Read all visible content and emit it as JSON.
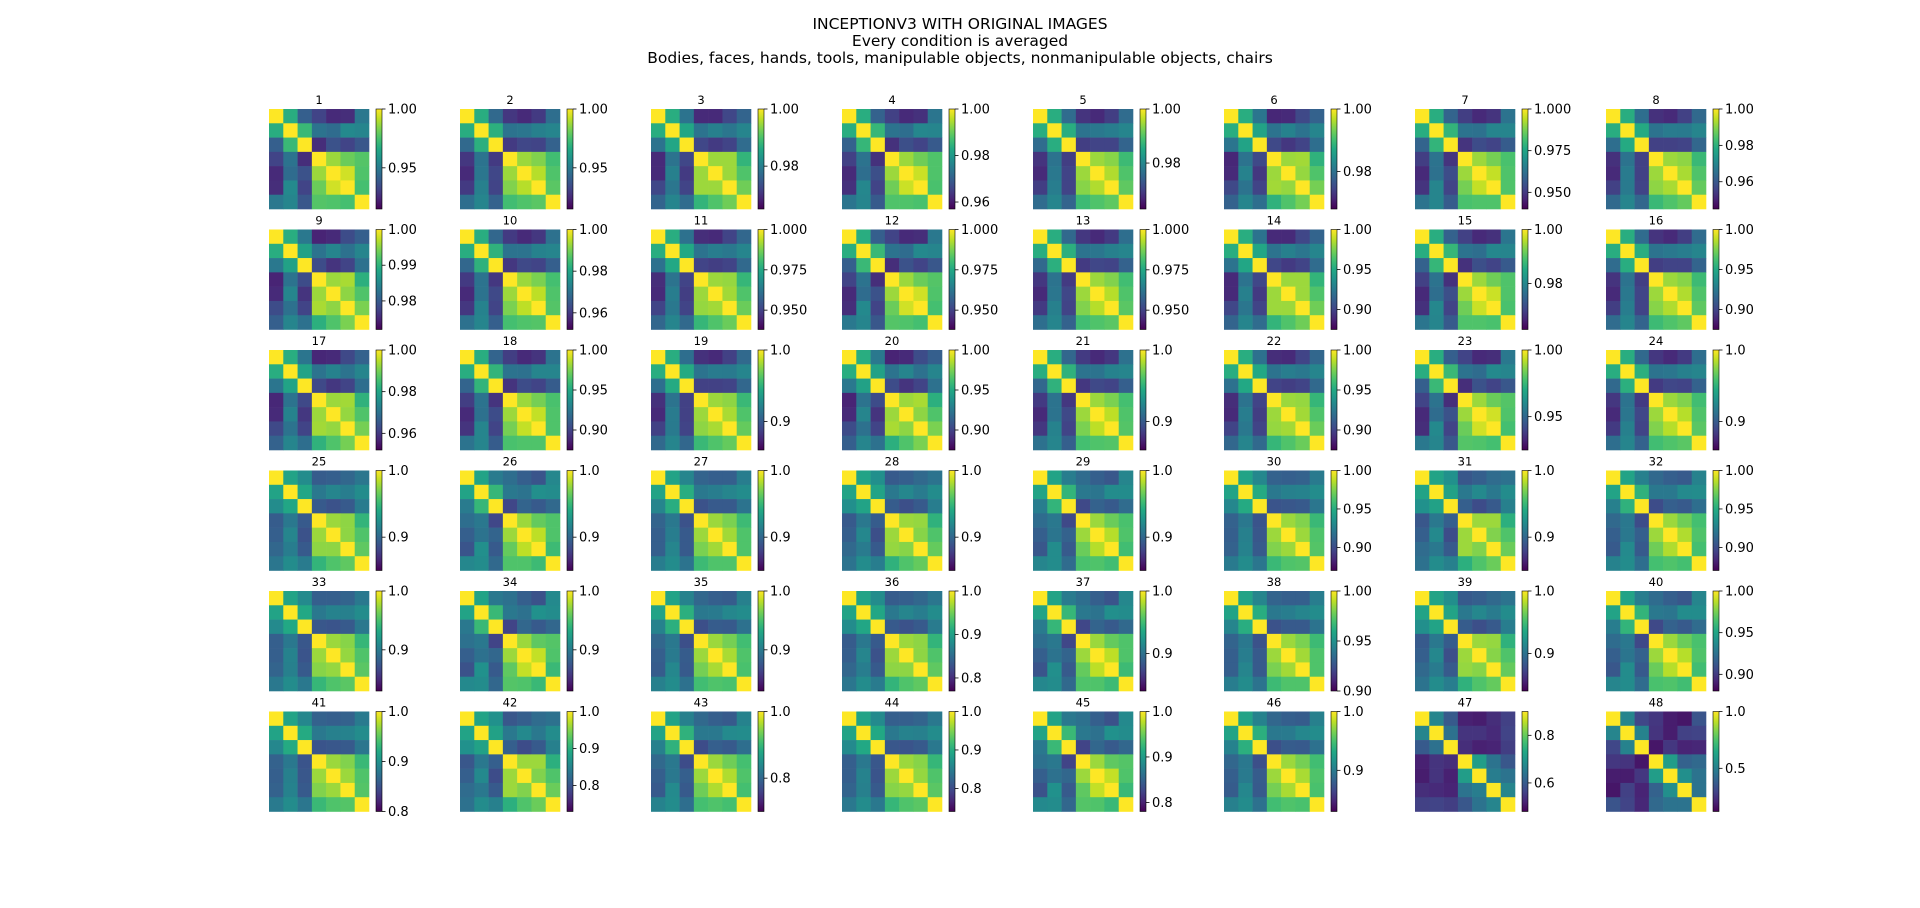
{
  "chart_data": {
    "type": "heatmap",
    "title": "INCEPTIONV3 WITH ORIGINAL IMAGES",
    "subtitle": "Every condition is averaged",
    "subtitle2": "Bodies, faces, hands, tools, manipulable objects, nonmanipulable objects, chairs",
    "colormap": "viridis",
    "conditions": [
      "Bodies",
      "faces",
      "hands",
      "tools",
      "manipulable objects",
      "nonmanipulable objects",
      "chairs"
    ],
    "matrix_size": 7,
    "panels": [
      {
        "label": "1",
        "colorbar": {
          "min": 0.915,
          "max": 1.0,
          "ticks": [
            "1.00",
            "0.95"
          ],
          "tick_values": [
            1.0,
            0.95
          ]
        }
      },
      {
        "label": "2",
        "colorbar": {
          "min": 0.915,
          "max": 1.0,
          "ticks": [
            "1.00",
            "0.95"
          ],
          "tick_values": [
            1.0,
            0.95
          ]
        }
      },
      {
        "label": "3",
        "colorbar": {
          "min": 0.965,
          "max": 1.0,
          "ticks": [
            "1.00",
            "0.98"
          ],
          "tick_values": [
            1.0,
            0.98
          ]
        }
      },
      {
        "label": "4",
        "colorbar": {
          "min": 0.957,
          "max": 1.0,
          "ticks": [
            "1.00",
            "0.98",
            "0.96"
          ],
          "tick_values": [
            1.0,
            0.98,
            0.96
          ]
        }
      },
      {
        "label": "5",
        "colorbar": {
          "min": 0.963,
          "max": 1.0,
          "ticks": [
            "1.00",
            "0.98"
          ],
          "tick_values": [
            1.0,
            0.98
          ]
        }
      },
      {
        "label": "6",
        "colorbar": {
          "min": 0.968,
          "max": 1.0,
          "ticks": [
            "1.00",
            "0.98"
          ],
          "tick_values": [
            1.0,
            0.98
          ]
        }
      },
      {
        "label": "7",
        "colorbar": {
          "min": 0.94,
          "max": 1.0,
          "ticks": [
            "1.000",
            "0.975",
            "0.950"
          ],
          "tick_values": [
            1.0,
            0.975,
            0.95
          ]
        }
      },
      {
        "label": "8",
        "colorbar": {
          "min": 0.945,
          "max": 1.0,
          "ticks": [
            "1.00",
            "0.98",
            "0.96"
          ],
          "tick_values": [
            1.0,
            0.98,
            0.96
          ]
        }
      },
      {
        "label": "9",
        "colorbar": {
          "min": 0.972,
          "max": 1.0,
          "ticks": [
            "1.00",
            "0.99",
            "0.98"
          ],
          "tick_values": [
            1.0,
            0.99,
            0.98
          ]
        }
      },
      {
        "label": "10",
        "colorbar": {
          "min": 0.952,
          "max": 1.0,
          "ticks": [
            "1.00",
            "0.98",
            "0.96"
          ],
          "tick_values": [
            1.0,
            0.98,
            0.96
          ]
        }
      },
      {
        "label": "11",
        "colorbar": {
          "min": 0.938,
          "max": 1.0,
          "ticks": [
            "1.000",
            "0.975",
            "0.950"
          ],
          "tick_values": [
            1.0,
            0.975,
            0.95
          ]
        }
      },
      {
        "label": "12",
        "colorbar": {
          "min": 0.938,
          "max": 1.0,
          "ticks": [
            "1.000",
            "0.975",
            "0.950"
          ],
          "tick_values": [
            1.0,
            0.975,
            0.95
          ]
        }
      },
      {
        "label": "13",
        "colorbar": {
          "min": 0.938,
          "max": 1.0,
          "ticks": [
            "1.000",
            "0.975",
            "0.950"
          ],
          "tick_values": [
            1.0,
            0.975,
            0.95
          ]
        }
      },
      {
        "label": "14",
        "colorbar": {
          "min": 0.875,
          "max": 1.0,
          "ticks": [
            "1.00",
            "0.95",
            "0.90"
          ],
          "tick_values": [
            1.0,
            0.95,
            0.9
          ]
        }
      },
      {
        "label": "15",
        "colorbar": {
          "min": 0.963,
          "max": 1.0,
          "ticks": [
            "1.00",
            "0.98"
          ],
          "tick_values": [
            1.0,
            0.98
          ]
        }
      },
      {
        "label": "16",
        "colorbar": {
          "min": 0.875,
          "max": 1.0,
          "ticks": [
            "1.00",
            "0.95",
            "0.90"
          ],
          "tick_values": [
            1.0,
            0.95,
            0.9
          ]
        }
      },
      {
        "label": "17",
        "colorbar": {
          "min": 0.952,
          "max": 1.0,
          "ticks": [
            "1.00",
            "0.98",
            "0.96"
          ],
          "tick_values": [
            1.0,
            0.98,
            0.96
          ]
        }
      },
      {
        "label": "18",
        "colorbar": {
          "min": 0.875,
          "max": 1.0,
          "ticks": [
            "1.00",
            "0.95",
            "0.90"
          ],
          "tick_values": [
            1.0,
            0.95,
            0.9
          ]
        }
      },
      {
        "label": "19",
        "colorbar": {
          "min": 0.86,
          "max": 1.0,
          "ticks": [
            "1.0",
            "0.9"
          ],
          "tick_values": [
            1.0,
            0.9
          ]
        }
      },
      {
        "label": "20",
        "colorbar": {
          "min": 0.875,
          "max": 1.0,
          "ticks": [
            "1.00",
            "0.95",
            "0.90"
          ],
          "tick_values": [
            1.0,
            0.95,
            0.9
          ]
        }
      },
      {
        "label": "21",
        "colorbar": {
          "min": 0.86,
          "max": 1.0,
          "ticks": [
            "1.0",
            "0.9"
          ],
          "tick_values": [
            1.0,
            0.9
          ]
        }
      },
      {
        "label": "22",
        "colorbar": {
          "min": 0.875,
          "max": 1.0,
          "ticks": [
            "1.00",
            "0.95",
            "0.90"
          ],
          "tick_values": [
            1.0,
            0.95,
            0.9
          ]
        }
      },
      {
        "label": "23",
        "colorbar": {
          "min": 0.925,
          "max": 1.0,
          "ticks": [
            "1.00",
            "0.95"
          ],
          "tick_values": [
            1.0,
            0.95
          ]
        }
      },
      {
        "label": "24",
        "colorbar": {
          "min": 0.86,
          "max": 1.0,
          "ticks": [
            "1.0",
            "0.9"
          ],
          "tick_values": [
            1.0,
            0.9
          ]
        }
      },
      {
        "label": "25",
        "colorbar": {
          "min": 0.85,
          "max": 1.0,
          "ticks": [
            "1.0",
            "0.9"
          ],
          "tick_values": [
            1.0,
            0.9
          ]
        }
      },
      {
        "label": "26",
        "colorbar": {
          "min": 0.85,
          "max": 1.0,
          "ticks": [
            "1.0",
            "0.9"
          ],
          "tick_values": [
            1.0,
            0.9
          ]
        }
      },
      {
        "label": "27",
        "colorbar": {
          "min": 0.85,
          "max": 1.0,
          "ticks": [
            "1.0",
            "0.9"
          ],
          "tick_values": [
            1.0,
            0.9
          ]
        }
      },
      {
        "label": "28",
        "colorbar": {
          "min": 0.85,
          "max": 1.0,
          "ticks": [
            "1.0",
            "0.9"
          ],
          "tick_values": [
            1.0,
            0.9
          ]
        }
      },
      {
        "label": "29",
        "colorbar": {
          "min": 0.85,
          "max": 1.0,
          "ticks": [
            "1.0",
            "0.9"
          ],
          "tick_values": [
            1.0,
            0.9
          ]
        }
      },
      {
        "label": "30",
        "colorbar": {
          "min": 0.87,
          "max": 1.0,
          "ticks": [
            "1.00",
            "0.95",
            "0.90"
          ],
          "tick_values": [
            1.0,
            0.95,
            0.9
          ]
        }
      },
      {
        "label": "31",
        "colorbar": {
          "min": 0.85,
          "max": 1.0,
          "ticks": [
            "1.0",
            "0.9"
          ],
          "tick_values": [
            1.0,
            0.9
          ]
        }
      },
      {
        "label": "32",
        "colorbar": {
          "min": 0.87,
          "max": 1.0,
          "ticks": [
            "1.00",
            "0.95",
            "0.90"
          ],
          "tick_values": [
            1.0,
            0.95,
            0.9
          ]
        }
      },
      {
        "label": "33",
        "colorbar": {
          "min": 0.83,
          "max": 1.0,
          "ticks": [
            "1.0",
            "0.9"
          ],
          "tick_values": [
            1.0,
            0.9
          ]
        }
      },
      {
        "label": "34",
        "colorbar": {
          "min": 0.83,
          "max": 1.0,
          "ticks": [
            "1.0",
            "0.9"
          ],
          "tick_values": [
            1.0,
            0.9
          ]
        }
      },
      {
        "label": "35",
        "colorbar": {
          "min": 0.83,
          "max": 1.0,
          "ticks": [
            "1.0",
            "0.9"
          ],
          "tick_values": [
            1.0,
            0.9
          ]
        }
      },
      {
        "label": "36",
        "colorbar": {
          "min": 0.77,
          "max": 1.0,
          "ticks": [
            "1.0",
            "0.9",
            "0.8"
          ],
          "tick_values": [
            1.0,
            0.9,
            0.8
          ]
        }
      },
      {
        "label": "37",
        "colorbar": {
          "min": 0.84,
          "max": 1.0,
          "ticks": [
            "1.0",
            "0.9"
          ],
          "tick_values": [
            1.0,
            0.9
          ]
        }
      },
      {
        "label": "38",
        "colorbar": {
          "min": 0.9,
          "max": 1.0,
          "ticks": [
            "1.00",
            "0.95",
            "0.90"
          ],
          "tick_values": [
            1.0,
            0.95,
            0.9
          ]
        }
      },
      {
        "label": "39",
        "colorbar": {
          "min": 0.84,
          "max": 1.0,
          "ticks": [
            "1.0",
            "0.9"
          ],
          "tick_values": [
            1.0,
            0.9
          ]
        }
      },
      {
        "label": "40",
        "colorbar": {
          "min": 0.88,
          "max": 1.0,
          "ticks": [
            "1.00",
            "0.95",
            "0.90"
          ],
          "tick_values": [
            1.0,
            0.95,
            0.9
          ]
        }
      },
      {
        "label": "41",
        "colorbar": {
          "min": 0.8,
          "max": 1.0,
          "ticks": [
            "1.0",
            "0.9",
            "0.8"
          ],
          "tick_values": [
            1.0,
            0.9,
            0.8
          ]
        }
      },
      {
        "label": "42",
        "colorbar": {
          "min": 0.73,
          "max": 1.0,
          "ticks": [
            "1.0",
            "0.9",
            "0.8"
          ],
          "tick_values": [
            1.0,
            0.9,
            0.8
          ]
        }
      },
      {
        "label": "43",
        "colorbar": {
          "min": 0.7,
          "max": 1.0,
          "ticks": [
            "1.0",
            "0.8"
          ],
          "tick_values": [
            1.0,
            0.8
          ]
        }
      },
      {
        "label": "44",
        "colorbar": {
          "min": 0.74,
          "max": 1.0,
          "ticks": [
            "1.0",
            "0.9",
            "0.8"
          ],
          "tick_values": [
            1.0,
            0.9,
            0.8
          ]
        }
      },
      {
        "label": "45",
        "colorbar": {
          "min": 0.78,
          "max": 1.0,
          "ticks": [
            "1.0",
            "0.9",
            "0.8"
          ],
          "tick_values": [
            1.0,
            0.9,
            0.8
          ]
        }
      },
      {
        "label": "46",
        "colorbar": {
          "min": 0.83,
          "max": 1.0,
          "ticks": [
            "1.0",
            "0.9"
          ],
          "tick_values": [
            1.0,
            0.9
          ]
        }
      },
      {
        "label": "47",
        "colorbar": {
          "min": 0.48,
          "max": 0.9,
          "ticks": [
            "0.8",
            "0.6"
          ],
          "tick_values": [
            0.8,
            0.6
          ]
        }
      },
      {
        "label": "48",
        "colorbar": {
          "min": 0.12,
          "max": 1.0,
          "ticks": [
            "1.0",
            "0.5"
          ],
          "tick_values": [
            1.0,
            0.5
          ]
        }
      }
    ],
    "pattern_templates": {
      "1-24": [
        [
          1.0,
          0.62,
          0.35,
          0.15,
          0.12,
          0.18,
          0.35
        ],
        [
          0.62,
          1.0,
          0.62,
          0.38,
          0.4,
          0.42,
          0.45
        ],
        [
          0.35,
          0.62,
          1.0,
          0.18,
          0.2,
          0.2,
          0.32
        ],
        [
          0.15,
          0.38,
          0.18,
          1.0,
          0.85,
          0.82,
          0.68
        ],
        [
          0.12,
          0.4,
          0.2,
          0.85,
          1.0,
          0.88,
          0.72
        ],
        [
          0.18,
          0.42,
          0.2,
          0.82,
          0.88,
          1.0,
          0.75
        ],
        [
          0.35,
          0.45,
          0.32,
          0.68,
          0.72,
          0.75,
          1.0
        ]
      ],
      "25-46": [
        [
          1.0,
          0.58,
          0.45,
          0.32,
          0.3,
          0.3,
          0.42
        ],
        [
          0.58,
          1.0,
          0.62,
          0.4,
          0.42,
          0.45,
          0.48
        ],
        [
          0.45,
          0.62,
          1.0,
          0.25,
          0.28,
          0.28,
          0.38
        ],
        [
          0.32,
          0.4,
          0.25,
          1.0,
          0.85,
          0.8,
          0.68
        ],
        [
          0.3,
          0.42,
          0.28,
          0.85,
          1.0,
          0.86,
          0.72
        ],
        [
          0.3,
          0.45,
          0.28,
          0.8,
          0.86,
          1.0,
          0.72
        ],
        [
          0.42,
          0.48,
          0.38,
          0.68,
          0.72,
          0.72,
          1.0
        ]
      ],
      "47-48": [
        [
          1.0,
          0.45,
          0.25,
          0.12,
          0.08,
          0.1,
          0.22
        ],
        [
          0.45,
          1.0,
          0.4,
          0.15,
          0.12,
          0.15,
          0.2
        ],
        [
          0.25,
          0.4,
          1.0,
          0.1,
          0.12,
          0.1,
          0.15
        ],
        [
          0.12,
          0.15,
          0.1,
          1.0,
          0.55,
          0.35,
          0.3
        ],
        [
          0.08,
          0.12,
          0.12,
          0.55,
          1.0,
          0.45,
          0.38
        ],
        [
          0.1,
          0.15,
          0.1,
          0.35,
          0.45,
          1.0,
          0.42
        ],
        [
          0.22,
          0.2,
          0.15,
          0.3,
          0.38,
          0.42,
          1.0
        ]
      ]
    }
  }
}
